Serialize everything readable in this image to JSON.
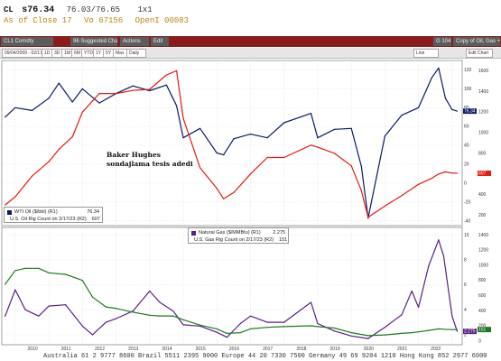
{
  "quote": {
    "ticker": "CL",
    "last": "s76.34",
    "range": "76.03/76.65",
    "count": "1x1",
    "line2": [
      "As of Close 17",
      "Vo 67156",
      "OpenI 00083"
    ]
  },
  "menubar": {
    "security": "CL1 Comdty",
    "suggested": "96 Suggested Charts",
    "actions": "Actions",
    "edit": "Edit",
    "page": "G 104",
    "title": "Copy of Oil, Gas + Rigs"
  },
  "toolbar": {
    "range": "09/04/2009 - 02/17/2023",
    "cells": [
      "1D",
      "3D",
      "1M",
      "6M",
      "YTD",
      "1Y",
      "5Y",
      "Max"
    ],
    "period": "Daily",
    "tab_left": "Line",
    "tab_right": "Edit Chart"
  },
  "annotation": [
    "Baker Hughes",
    "sondajlama tesis adedi"
  ],
  "colors": {
    "wti": "#0a1a6b",
    "oil_rigs": "#e8190f",
    "natgas": "#5b1f86",
    "gas_rigs": "#1d7a1d"
  },
  "chart_data": [
    {
      "type": "line",
      "x": [
        2009.7,
        2010.0,
        2010.5,
        2011.0,
        2011.3,
        2011.7,
        2012.0,
        2012.5,
        2013.0,
        2013.5,
        2014.0,
        2014.5,
        2014.8,
        2015.0,
        2015.5,
        2016.0,
        2016.2,
        2016.5,
        2017.0,
        2017.5,
        2018.0,
        2018.8,
        2019.0,
        2019.5,
        2020.0,
        2020.3,
        2020.5,
        2021.0,
        2021.5,
        2022.0,
        2022.4,
        2022.6,
        2022.8,
        2023.0,
        2023.15
      ],
      "xticks": [
        "2010",
        "2011",
        "2012",
        "2013",
        "2014",
        "2015",
        "2016",
        "2017",
        "2018",
        "2019",
        "2020",
        "2021",
        "2022",
        "2023"
      ],
      "y_left_ticks": [
        -40,
        -20,
        0,
        20,
        40,
        60,
        80,
        100,
        120
      ],
      "y_right_ticks": [
        200,
        400,
        600,
        800,
        1000,
        1200,
        1400,
        1600
      ],
      "series": [
        {
          "name": "WTI Oil ($/bbl) (R1)",
          "last": "76.34",
          "axis": "left",
          "values": [
            70,
            80,
            77,
            90,
            106,
            86,
            100,
            85,
            95,
            103,
            98,
            104,
            82,
            48,
            58,
            32,
            30,
            47,
            52,
            48,
            64,
            74,
            48,
            57,
            58,
            18,
            -37,
            50,
            72,
            80,
            112,
            122,
            90,
            78,
            76.34
          ]
        },
        {
          "name": "U.S. Oil Rig Count on 2/17/23 (R2)",
          "last": "607",
          "axis": "right",
          "values": [
            300,
            380,
            580,
            720,
            840,
            960,
            1200,
            1380,
            1380,
            1410,
            1420,
            1560,
            1600,
            1140,
            660,
            460,
            360,
            420,
            600,
            760,
            760,
            880,
            860,
            800,
            680,
            440,
            180,
            290,
            390,
            500,
            560,
            600,
            620,
            610,
            607
          ]
        }
      ],
      "right_labels": [
        "76.34",
        "607"
      ]
    },
    {
      "type": "line",
      "x": [
        2009.7,
        2010.0,
        2010.3,
        2010.7,
        2011.0,
        2011.5,
        2012.0,
        2012.3,
        2012.7,
        2013.0,
        2013.5,
        2014.0,
        2014.3,
        2014.7,
        2015.0,
        2015.5,
        2016.0,
        2016.3,
        2016.7,
        2017.0,
        2017.5,
        2018.0,
        2018.8,
        2019.0,
        2019.5,
        2020.0,
        2020.5,
        2021.0,
        2021.5,
        2021.8,
        2022.0,
        2022.3,
        2022.6,
        2022.75,
        2023.0,
        2023.15
      ],
      "xticks": [
        "2010",
        "2011",
        "2012",
        "2013",
        "2014",
        "2015",
        "2016",
        "2017",
        "2018",
        "2019",
        "2020",
        "2021",
        "2022",
        "2023"
      ],
      "y_left_ticks": [
        2,
        4,
        6,
        8,
        10
      ],
      "y_right_ticks": [
        0,
        200,
        400,
        600,
        800,
        1000,
        1200,
        1400
      ],
      "series": [
        {
          "name": "Natural Gas ($/MMBtu) (R1)",
          "last": "2.275",
          "axis": "left",
          "values": [
            3.5,
            5.6,
            4.0,
            3.5,
            4.3,
            4.4,
            2.7,
            2.0,
            3.0,
            3.3,
            3.9,
            5.5,
            4.6,
            3.9,
            2.8,
            2.7,
            2.2,
            1.8,
            2.9,
            3.5,
            3.0,
            3.0,
            4.6,
            2.9,
            2.3,
            1.9,
            1.7,
            2.6,
            3.6,
            5.5,
            4.2,
            7.5,
            9.6,
            8.3,
            3.5,
            2.275
          ]
        },
        {
          "name": "U.S. Gas Rig Count on 2/17/23 (R2)",
          "last": "151",
          "axis": "right",
          "values": [
            750,
            930,
            960,
            960,
            900,
            880,
            800,
            580,
            450,
            430,
            380,
            340,
            330,
            330,
            280,
            210,
            160,
            100,
            110,
            160,
            180,
            190,
            200,
            190,
            170,
            110,
            70,
            80,
            100,
            110,
            120,
            140,
            160,
            155,
            150,
            151
          ]
        }
      ],
      "right_labels": [
        "2.275",
        "151"
      ]
    }
  ],
  "bottom_line": "Australia 61 2 9777 8600  Brazil 5511 2395 9000  Europe 44 20 7330 7500  Germany 49 69 9204 1210  Hong Kong 852 2977 6000"
}
